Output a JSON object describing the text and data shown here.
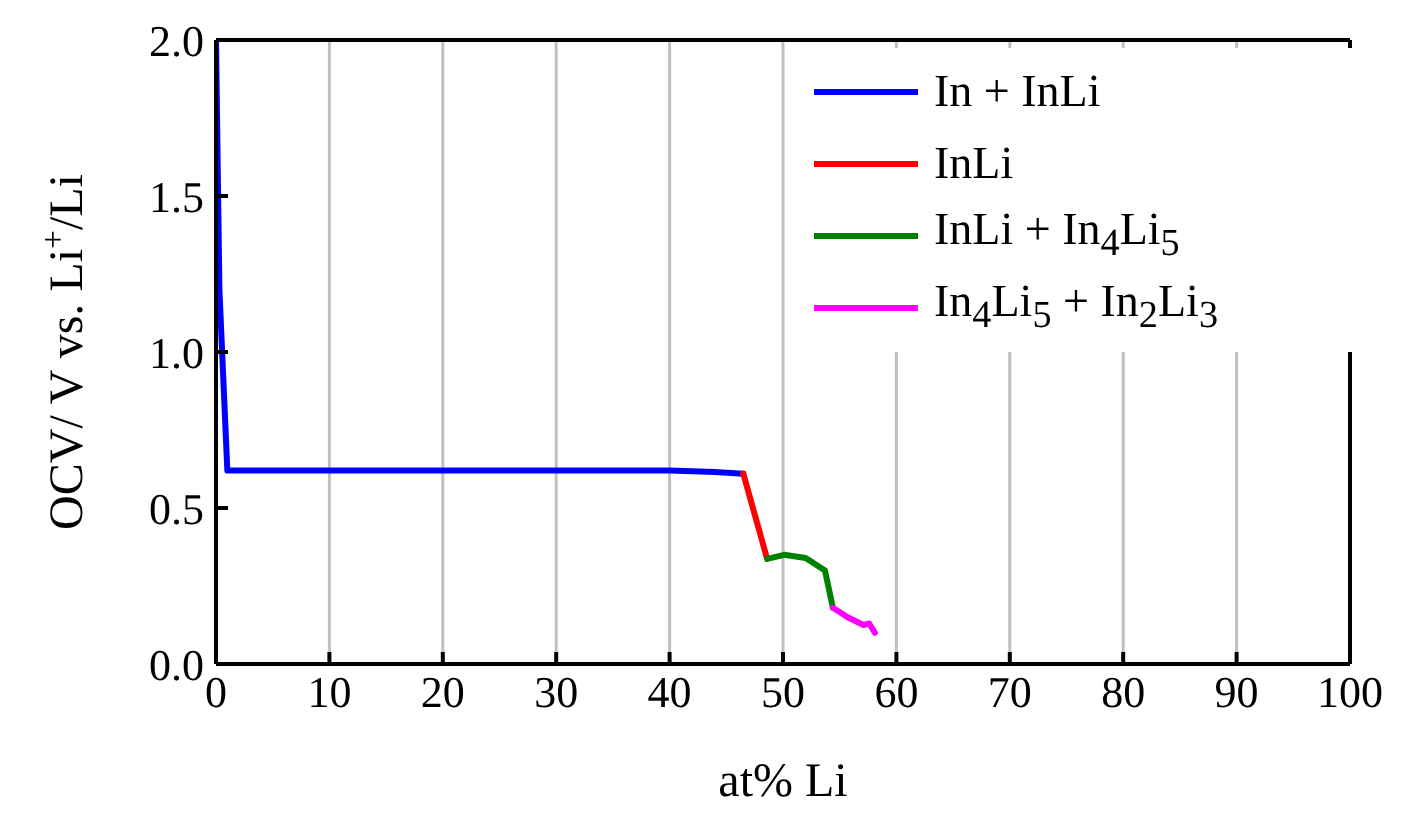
{
  "chart_data": {
    "type": "line",
    "xlabel": "at% Li",
    "ylabel": "OCV/ V vs. Li$^{+}$/Li",
    "xlim": [
      0,
      100
    ],
    "xticks": [
      0,
      10,
      20,
      30,
      40,
      50,
      60,
      70,
      80,
      90,
      100
    ],
    "ylim": [
      0,
      2.0
    ],
    "yticks": [
      {
        "value": 0,
        "label": "0.0"
      },
      {
        "value": 0.5,
        "label": "0.5"
      },
      {
        "value": 1.0,
        "label": "1.0"
      },
      {
        "value": 1.5,
        "label": "1.5"
      },
      {
        "value": 2.0,
        "label": "2.0"
      }
    ],
    "grid": "x",
    "legend": "top right",
    "marker": "none",
    "line_style": "solid",
    "series": [
      {
        "name": "In + InLi",
        "color": "#0000ff",
        "x": [
          0,
          0.3,
          1.0,
          10,
          20,
          30,
          40,
          44,
          46.5
        ],
        "values": [
          2.0,
          1.2,
          0.62,
          0.62,
          0.62,
          0.62,
          0.62,
          0.615,
          0.61
        ]
      },
      {
        "name": "InLi",
        "color": "#ff0000",
        "x": [
          46.5,
          48.6
        ],
        "values": [
          0.61,
          0.337
        ]
      },
      {
        "name": "InLi + In$_{4}$Li$_{5}$",
        "color": "#008000",
        "x": [
          48.6,
          50.1,
          52,
          53.7,
          54.4
        ],
        "values": [
          0.337,
          0.35,
          0.34,
          0.3,
          0.18
        ]
      },
      {
        "name": "In$_{4}$Li$_{5}$ + In$_{2}$Li$_{3}$",
        "color": "#ff00ff",
        "x": [
          54.4,
          55.7,
          57.1,
          57.6,
          58.1
        ],
        "values": [
          0.18,
          0.15,
          0.125,
          0.13,
          0.1
        ]
      }
    ]
  }
}
